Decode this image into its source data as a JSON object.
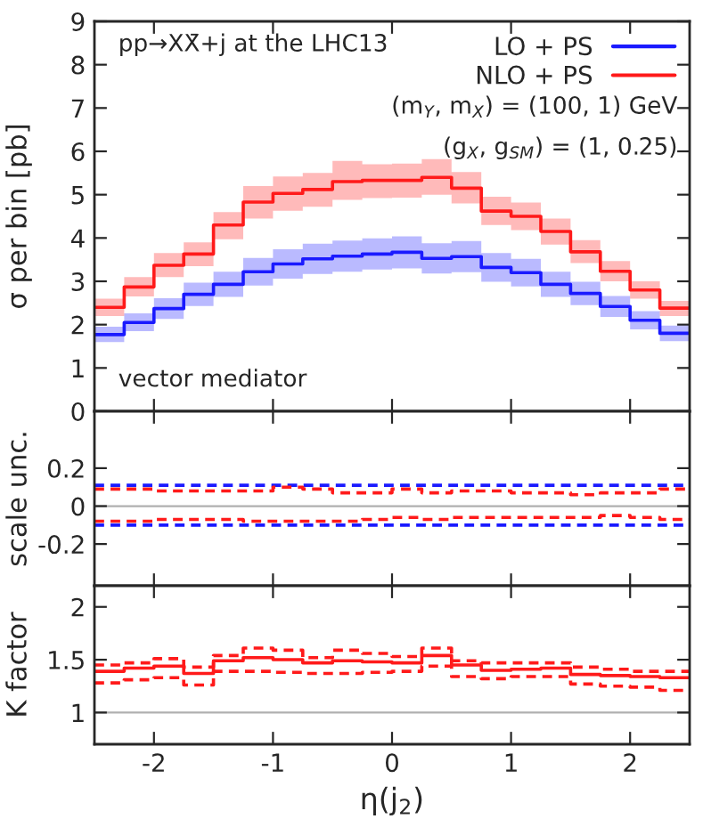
{
  "chart_data": [
    {
      "type": "step",
      "ylabel": "σ per bin [pb]",
      "x": [
        -2.5,
        -2.25,
        -2.0,
        -1.75,
        -1.5,
        -1.25,
        -1.0,
        -0.75,
        -0.5,
        -0.25,
        0,
        0.25,
        0.5,
        0.75,
        1.0,
        1.25,
        1.5,
        1.75,
        2.0,
        2.25,
        2.5
      ],
      "series": [
        {
          "name": "LO + PS",
          "color": "#1a1aff",
          "values": [
            1.77,
            2.05,
            2.37,
            2.7,
            2.93,
            3.22,
            3.4,
            3.52,
            3.58,
            3.63,
            3.67,
            3.53,
            3.57,
            3.32,
            3.2,
            2.93,
            2.72,
            2.42,
            2.1,
            1.8,
            1.8
          ],
          "lower": [
            1.6,
            1.85,
            2.13,
            2.43,
            2.64,
            2.9,
            3.06,
            3.17,
            3.22,
            3.27,
            3.3,
            3.18,
            3.21,
            2.99,
            2.88,
            2.64,
            2.45,
            2.18,
            1.89,
            1.62,
            1.62
          ],
          "upper": [
            1.95,
            2.26,
            2.61,
            2.97,
            3.22,
            3.54,
            3.74,
            3.87,
            3.94,
            3.99,
            4.04,
            3.88,
            3.93,
            3.65,
            3.52,
            3.22,
            2.99,
            2.66,
            2.31,
            1.98,
            1.98
          ]
        },
        {
          "name": "NLO + PS",
          "color": "#ff1a1a",
          "values": [
            2.4,
            2.87,
            3.37,
            3.63,
            4.3,
            4.83,
            5.03,
            5.12,
            5.3,
            5.33,
            5.33,
            5.4,
            5.15,
            4.62,
            4.5,
            4.15,
            3.68,
            3.23,
            2.8,
            2.38,
            2.38
          ],
          "lower": [
            2.2,
            2.65,
            3.1,
            3.35,
            3.97,
            4.45,
            4.63,
            4.72,
            4.88,
            4.92,
            4.93,
            5.0,
            4.8,
            4.3,
            4.18,
            3.85,
            3.42,
            3.0,
            2.6,
            2.2,
            2.2
          ],
          "upper": [
            2.6,
            3.1,
            3.65,
            3.9,
            4.6,
            5.2,
            5.42,
            5.5,
            5.78,
            5.7,
            5.72,
            5.82,
            5.52,
            4.95,
            4.82,
            4.45,
            3.95,
            3.47,
            3.0,
            2.55,
            2.55
          ]
        }
      ],
      "xlim": [
        -2.5,
        2.5
      ],
      "xticks": [
        -2,
        -1,
        0,
        1,
        2
      ],
      "ylim": [
        0,
        9
      ],
      "yticks": [
        0,
        1,
        2,
        3,
        4,
        5,
        6,
        7,
        8,
        9
      ],
      "tick_labels": "y",
      "legend": "top right",
      "grid": false,
      "annotations": [
        "pp→XX̄+j at the LHC13",
        "(m$_{Y}$, m$_{X}$) = (100, 1) GeV",
        "(g$_{X}$, g$_{SM}$) = (1, 0.25)",
        "vector mediator"
      ]
    },
    {
      "type": "step",
      "ylabel": "scale unc.",
      "x": [
        -2.5,
        -2.25,
        -2.0,
        -1.75,
        -1.5,
        -1.25,
        -1.0,
        -0.75,
        -0.5,
        -0.25,
        0,
        0.25,
        0.5,
        0.75,
        1.0,
        1.25,
        1.5,
        1.75,
        2.0,
        2.25,
        2.5
      ],
      "series": [
        {
          "color": "#1a1aff",
          "line_style": "dashed",
          "values": [
            0.11,
            0.11,
            0.11,
            0.11,
            0.11,
            0.11,
            0.11,
            0.11,
            0.11,
            0.11,
            0.11,
            0.11,
            0.11,
            0.11,
            0.11,
            0.11,
            0.11,
            0.11,
            0.11,
            0.11,
            0.11
          ]
        },
        {
          "color": "#1a1aff",
          "line_style": "dashed",
          "values": [
            -0.1,
            -0.1,
            -0.1,
            -0.1,
            -0.1,
            -0.1,
            -0.1,
            -0.1,
            -0.1,
            -0.1,
            -0.1,
            -0.1,
            -0.1,
            -0.1,
            -0.1,
            -0.1,
            -0.1,
            -0.1,
            -0.1,
            -0.1,
            -0.1
          ]
        },
        {
          "color": "#ff1a1a",
          "line_style": "dashed",
          "values": [
            0.09,
            0.09,
            0.08,
            0.08,
            0.08,
            0.08,
            0.1,
            0.09,
            0.07,
            0.07,
            0.09,
            0.07,
            0.08,
            0.08,
            0.07,
            0.07,
            0.06,
            0.07,
            0.07,
            0.09,
            0.09
          ]
        },
        {
          "color": "#ff1a1a",
          "line_style": "dashed",
          "values": [
            -0.08,
            -0.08,
            -0.07,
            -0.07,
            -0.07,
            -0.08,
            -0.08,
            -0.08,
            -0.08,
            -0.07,
            -0.06,
            -0.07,
            -0.06,
            -0.06,
            -0.06,
            -0.06,
            -0.06,
            -0.05,
            -0.06,
            -0.07,
            -0.07
          ]
        }
      ],
      "xlim": [
        -2.5,
        2.5
      ],
      "xticks": [
        -2,
        -1,
        0,
        1,
        2
      ],
      "ylim": [
        -0.42,
        0.5
      ],
      "yticks": [
        -0.2,
        0,
        0.2
      ],
      "tick_labels": "y",
      "ref_lines": [
        {
          "axis": "y",
          "value": 0,
          "color": "#b0b0b0"
        }
      ]
    },
    {
      "type": "step",
      "ylabel": "K factor",
      "xlabel": "η(j$_{2}$)",
      "x": [
        -2.5,
        -2.25,
        -2.0,
        -1.75,
        -1.5,
        -1.25,
        -1.0,
        -0.75,
        -0.5,
        -0.25,
        0,
        0.25,
        0.5,
        0.75,
        1.0,
        1.25,
        1.5,
        1.75,
        2.0,
        2.25,
        2.5
      ],
      "series": [
        {
          "color": "#ff1a1a",
          "line_style": "solid",
          "values": [
            1.39,
            1.42,
            1.44,
            1.37,
            1.49,
            1.52,
            1.5,
            1.47,
            1.49,
            1.48,
            1.47,
            1.54,
            1.45,
            1.4,
            1.41,
            1.42,
            1.36,
            1.35,
            1.34,
            1.33,
            1.33
          ]
        },
        {
          "color": "#ff1a1a",
          "line_style": "dashed",
          "values": [
            1.45,
            1.47,
            1.51,
            1.43,
            1.54,
            1.61,
            1.59,
            1.52,
            1.59,
            1.56,
            1.53,
            1.61,
            1.49,
            1.47,
            1.47,
            1.47,
            1.43,
            1.41,
            1.39,
            1.39,
            1.39
          ]
        },
        {
          "color": "#ff1a1a",
          "line_style": "dashed",
          "values": [
            1.28,
            1.31,
            1.33,
            1.26,
            1.39,
            1.39,
            1.38,
            1.37,
            1.37,
            1.38,
            1.39,
            1.44,
            1.34,
            1.32,
            1.34,
            1.34,
            1.27,
            1.25,
            1.24,
            1.21,
            1.21
          ]
        }
      ],
      "xlim": [
        -2.5,
        2.5
      ],
      "xticks": [
        -2,
        -1,
        0,
        1,
        2
      ],
      "ylim": [
        0.7,
        2.2
      ],
      "yticks": [
        1,
        1.5,
        2
      ],
      "ref_lines": [
        {
          "axis": "y",
          "value": 1,
          "color": "#b0b0b0"
        }
      ]
    }
  ]
}
